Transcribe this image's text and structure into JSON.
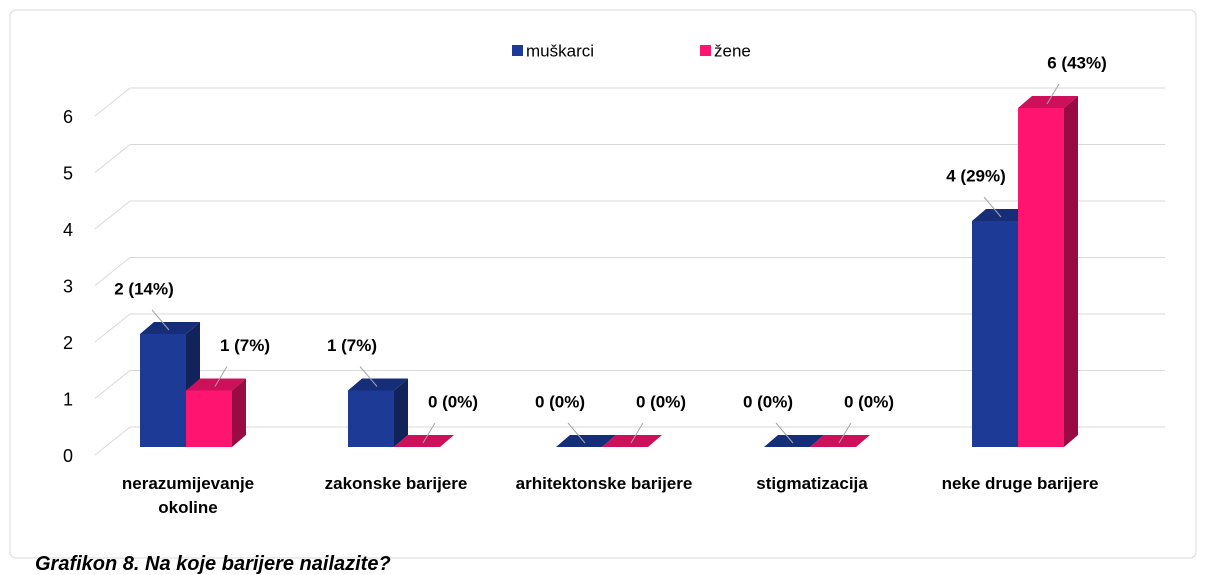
{
  "chart_data": {
    "type": "bar3d",
    "categories": [
      "nerazumijevanje okoline",
      "zakonske barijere",
      "arhitektonske barijere",
      "stigmatizacija",
      "neke druge barijere"
    ],
    "series": [
      {
        "name": "muškarci",
        "color": "#1c3a96",
        "values": [
          2,
          1,
          0,
          0,
          4
        ],
        "value_labels": [
          "2 (14%)",
          "1 (7%)",
          "0 (0%)",
          "0 (0%)",
          "4 (29%)"
        ]
      },
      {
        "name": "žene",
        "color": "#ff1470",
        "values": [
          1,
          0,
          0,
          0,
          6
        ],
        "value_labels": [
          "1 (7%)",
          "0 (0%)",
          "0 (0%)",
          "0 (0%)",
          "6 (43%)"
        ]
      }
    ],
    "ylim": [
      0,
      6
    ],
    "yticks": [
      0,
      1,
      2,
      3,
      4,
      5,
      6
    ],
    "grid": true,
    "legend": "top",
    "caption": "Grafikon 8. Na koje barijere nailazite?"
  }
}
